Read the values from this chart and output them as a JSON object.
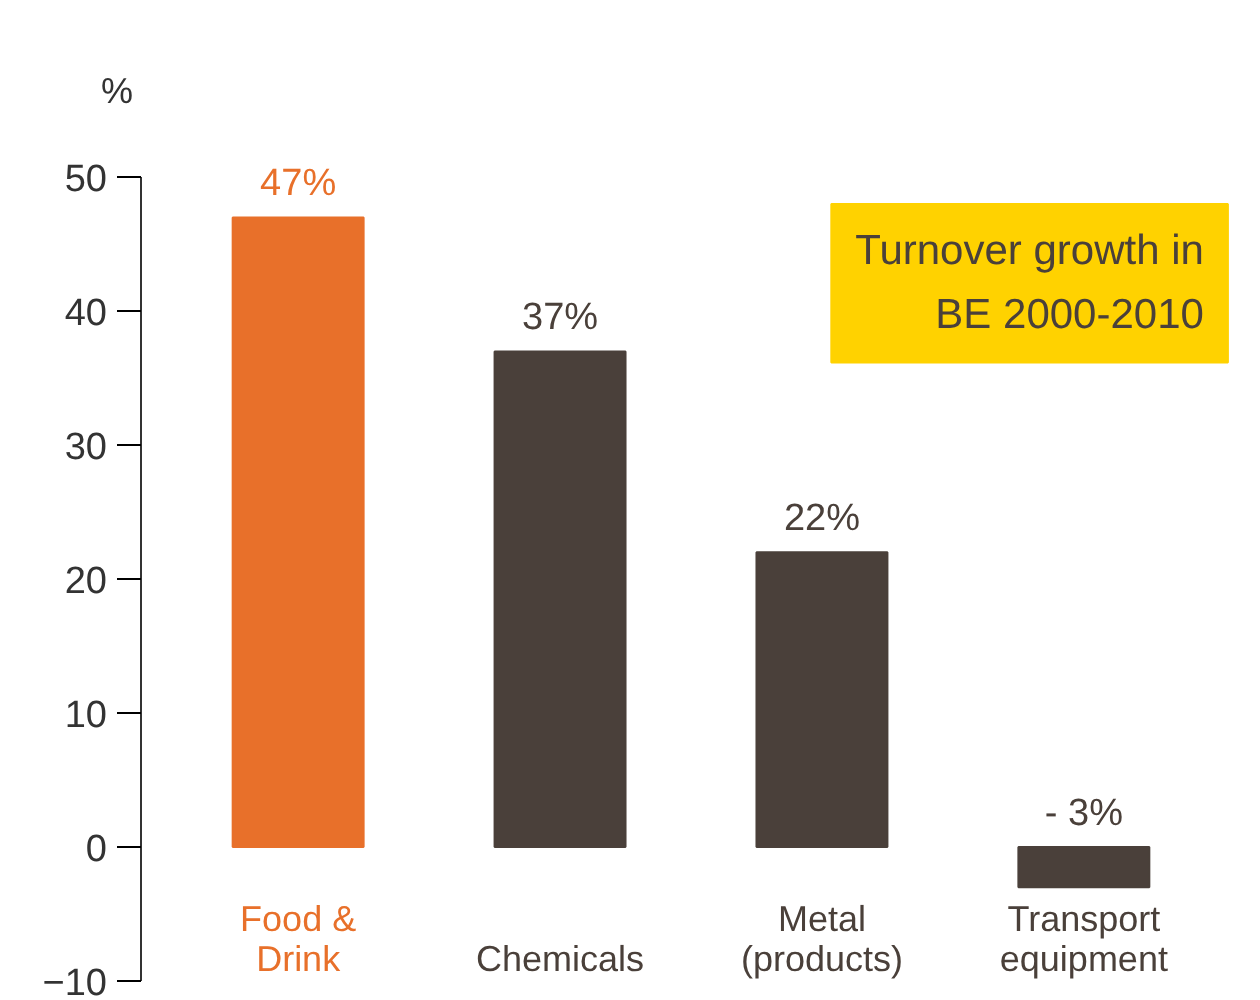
{
  "chart_data": {
    "type": "bar",
    "categories": [
      "Food &\nDrink",
      "Chemicals",
      "Metal\n(products)",
      "Transport\nequipment"
    ],
    "values": [
      47,
      37,
      22,
      -3
    ],
    "colors": [
      "#e8702a",
      "#4a403a",
      "#4a403a",
      "#4a403a"
    ],
    "value_labels": [
      "47%",
      "37%",
      "22%",
      "- 3%"
    ],
    "ylabel": "%",
    "ylim": [
      -10,
      50
    ],
    "yticks": [
      -10,
      0,
      10,
      20,
      30,
      40,
      50
    ],
    "annotations": [
      "Turnover growth in\nBE 2000-2010"
    ],
    "grid": false
  }
}
